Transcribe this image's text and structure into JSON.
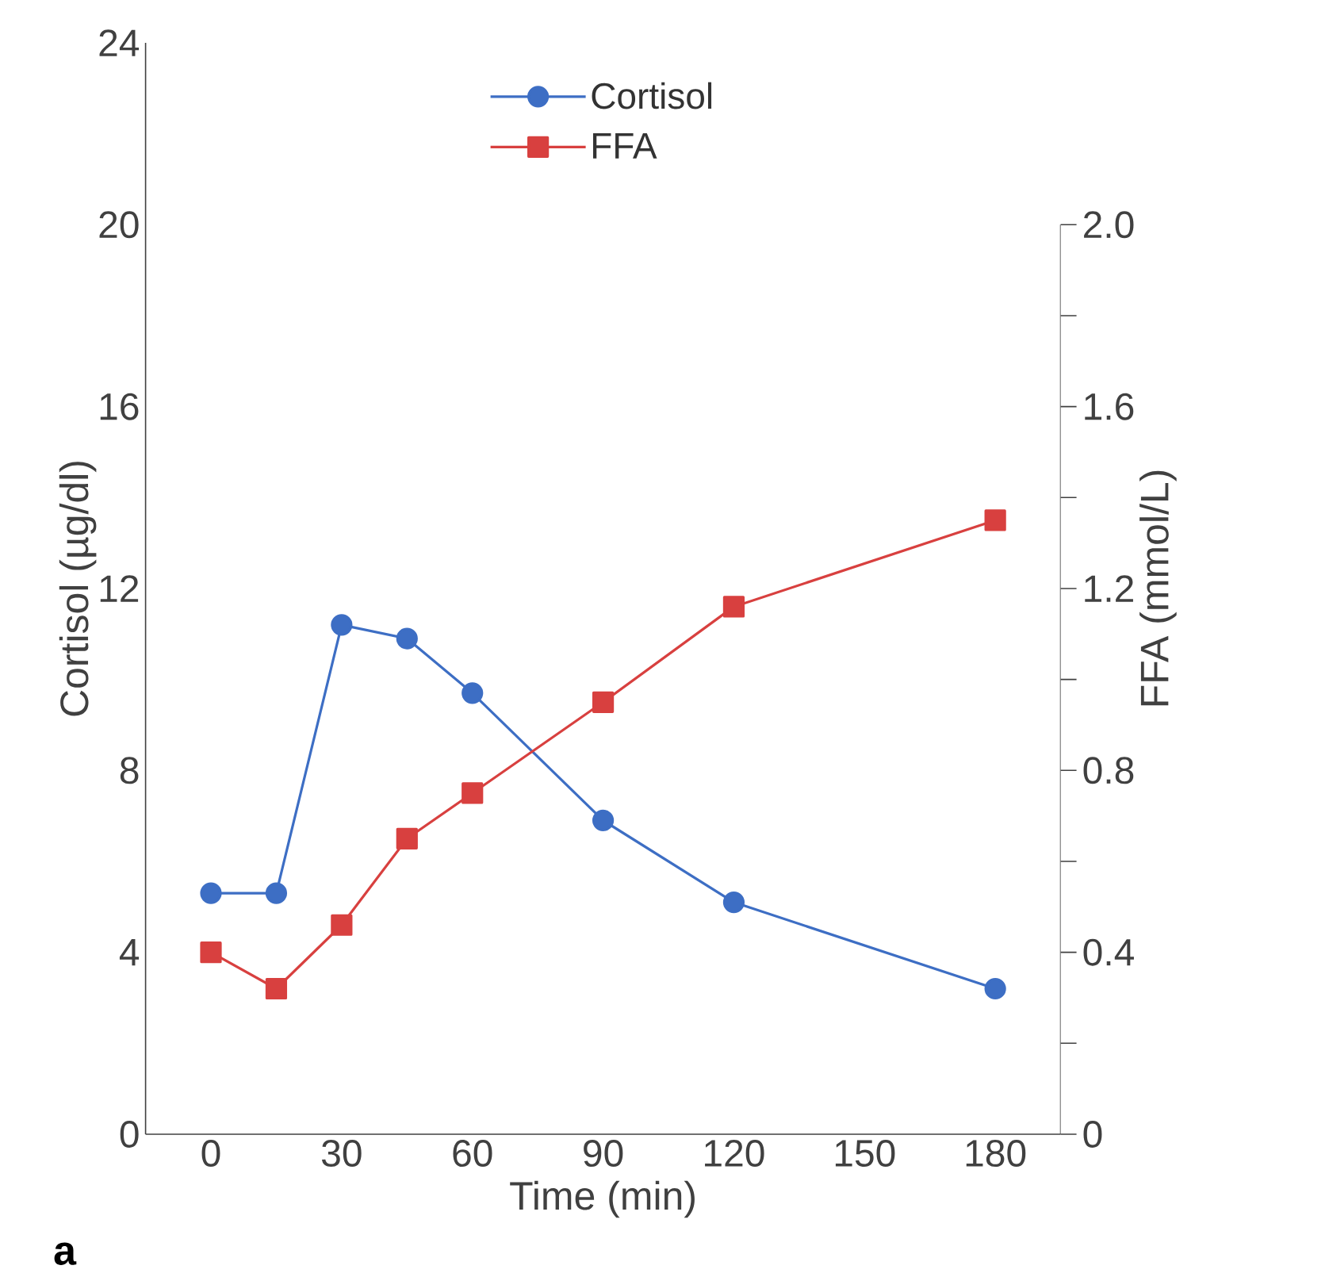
{
  "chart_data": {
    "type": "line",
    "x": [
      0,
      15,
      30,
      45,
      60,
      90,
      120,
      180
    ],
    "series": [
      {
        "name": "Cortisol",
        "color": "#3d6ec4",
        "marker": "circle",
        "values": [
          5.3,
          5.3,
          11.2,
          10.9,
          9.7,
          6.9,
          5.1,
          3.2
        ]
      },
      {
        "name": "FFA",
        "color": "#d8403f",
        "marker": "square",
        "axis": "y2",
        "values": [
          0.4,
          0.32,
          0.46,
          0.65,
          0.75,
          0.95,
          1.16,
          1.35
        ]
      }
    ],
    "xlabel": "Time (min)",
    "ylabel": "Cortisol (µg/dl)",
    "y2label": "FFA (mmol/L)",
    "xlim": [
      -15,
      195
    ],
    "xticks": [
      0,
      30,
      60,
      90,
      120,
      150,
      180
    ],
    "ylim": [
      0,
      24
    ],
    "yticks": [
      0,
      4,
      8,
      12,
      16,
      20,
      24
    ],
    "y2lim": [
      0,
      2.4
    ],
    "y2ticks": [
      0,
      {
        "value": 0.2,
        "label": null
      },
      0.4,
      {
        "value": 0.6,
        "label": null
      },
      0.8,
      {
        "value": 1.0,
        "label": null
      },
      1.2,
      {
        "value": 1.4,
        "label": null
      },
      1.6,
      {
        "value": 1.8,
        "label": null
      },
      {
        "value": 2,
        "label": "2.0"
      }
    ],
    "legend": "top",
    "grid": false,
    "line_style": "solid",
    "annotations": [
      "a"
    ]
  }
}
